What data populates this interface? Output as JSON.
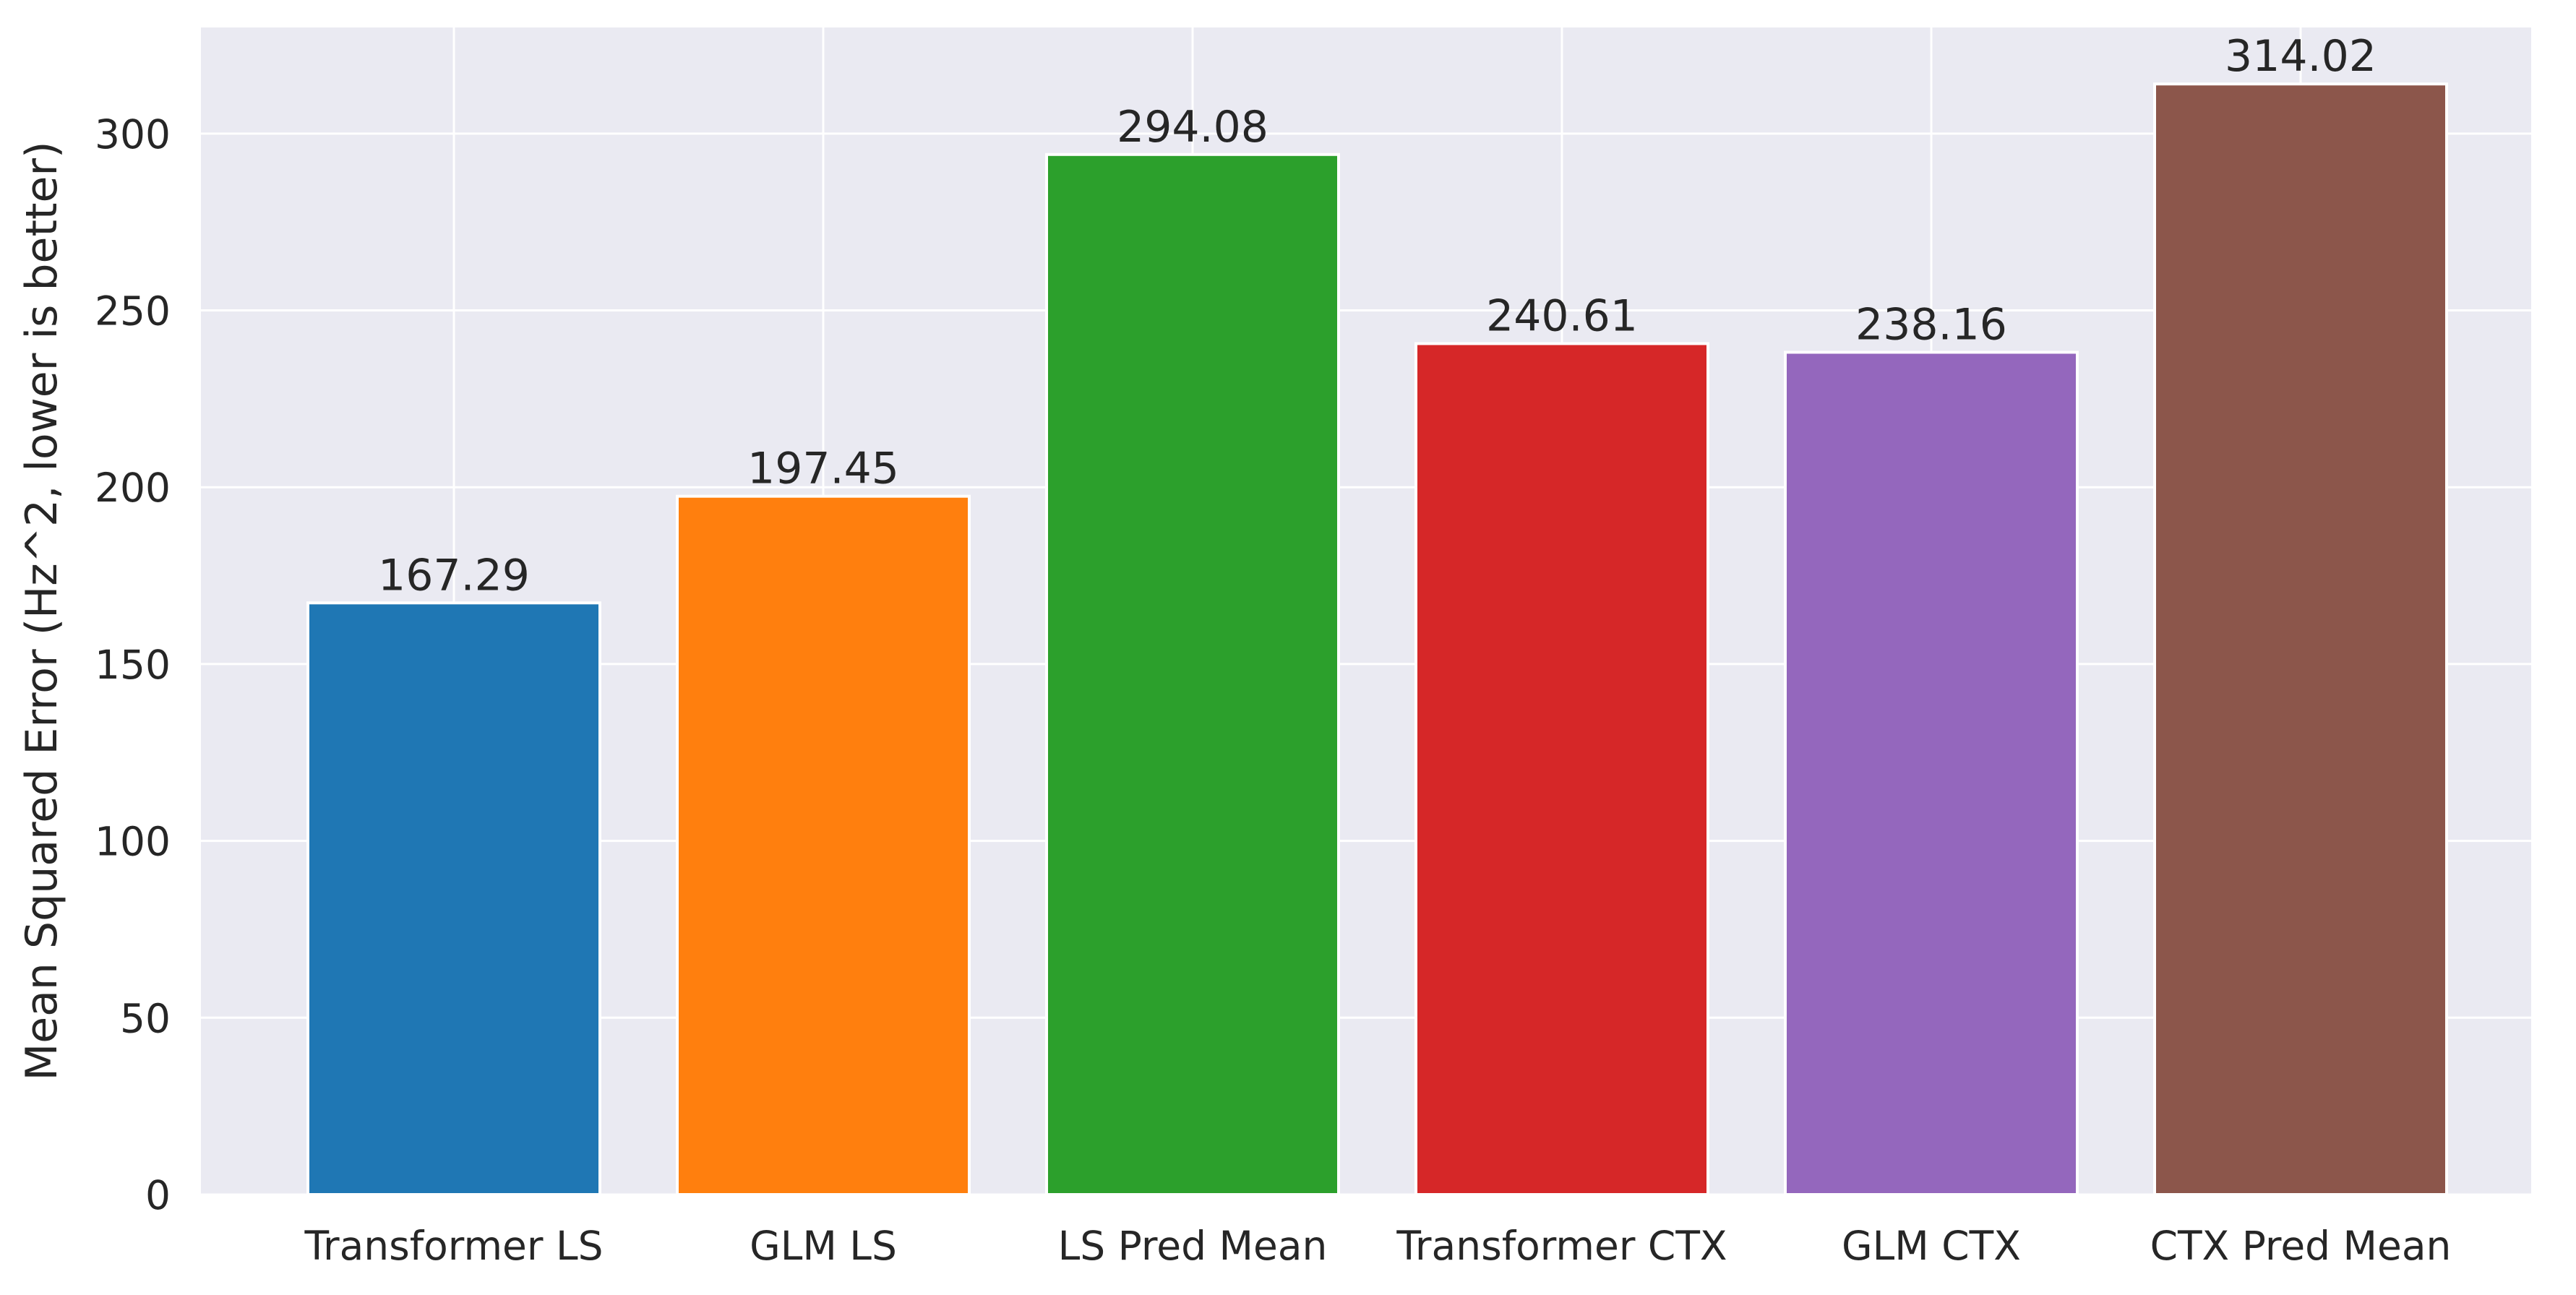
{
  "chart_data": {
    "type": "bar",
    "title": "",
    "xlabel": "",
    "ylabel": "Mean Squared Error (Hz^2, lower is better)",
    "categories": [
      "Transformer LS",
      "GLM LS",
      "LS Pred Mean",
      "Transformer CTX",
      "GLM CTX",
      "CTX Pred Mean"
    ],
    "values": [
      167.29,
      197.45,
      294.08,
      240.61,
      238.16,
      314.02
    ],
    "value_labels": [
      "167.29",
      "197.45",
      "294.08",
      "240.61",
      "238.16",
      "314.02"
    ],
    "colors": [
      "#1f77b4",
      "#ff7f0e",
      "#2ca02c",
      "#d62728",
      "#9467bd",
      "#8c564b"
    ],
    "ylim": [
      0,
      330
    ],
    "yticks": [
      0,
      50,
      100,
      150,
      200,
      250,
      300
    ],
    "ytick_labels": [
      "0",
      "50",
      "100",
      "150",
      "200",
      "250",
      "300"
    ],
    "grid": true,
    "background_color": "#eaeaf2",
    "grid_color": "#ffffff"
  }
}
